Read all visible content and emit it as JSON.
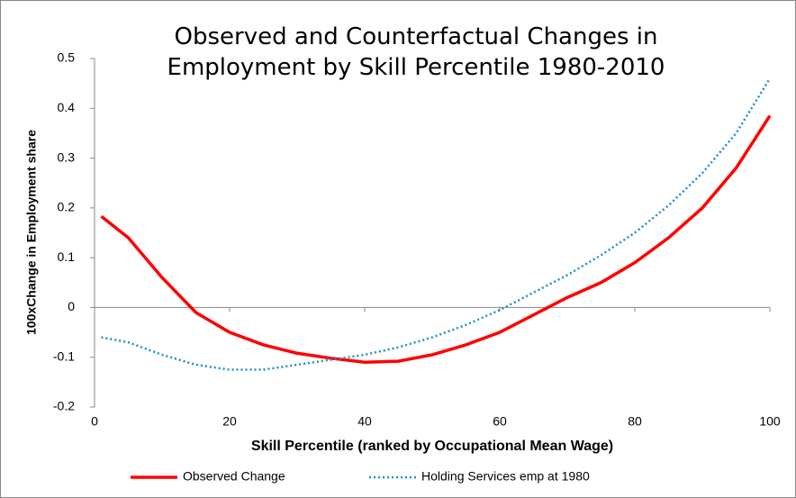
{
  "chart_data": {
    "type": "line",
    "title": "Observed and Counterfactual Changes in Employment by Skill Percentile 1980-2010",
    "x_label": "Skill Percentile (ranked by Occupational Mean Wage)",
    "y_label": "100xChange in Employment share",
    "x": [
      1,
      5,
      10,
      15,
      20,
      25,
      30,
      35,
      40,
      45,
      50,
      55,
      60,
      65,
      70,
      75,
      80,
      85,
      90,
      95,
      100
    ],
    "series": [
      {
        "name": "Observed Change",
        "color": "#ff0000",
        "dash": "solid",
        "values": [
          0.183,
          0.14,
          0.06,
          -0.01,
          -0.05,
          -0.075,
          -0.092,
          -0.102,
          -0.11,
          -0.108,
          -0.095,
          -0.075,
          -0.05,
          -0.015,
          0.02,
          0.05,
          0.09,
          0.14,
          0.2,
          0.28,
          0.385
        ]
      },
      {
        "name": "Holding Services emp at 1980",
        "color": "#1f8fc8",
        "dash": "dotted",
        "values": [
          -0.06,
          -0.07,
          -0.095,
          -0.115,
          -0.125,
          -0.125,
          -0.115,
          -0.105,
          -0.095,
          -0.08,
          -0.06,
          -0.035,
          -0.005,
          0.03,
          0.065,
          0.105,
          0.15,
          0.205,
          0.27,
          0.35,
          0.46
        ]
      }
    ],
    "xlim": [
      0,
      100
    ],
    "xticks": [
      0,
      20,
      40,
      60,
      80,
      100
    ],
    "ylim": [
      -0.2,
      0.5
    ],
    "yticks": [
      0.5,
      0.4,
      0.3,
      0.2,
      0.1,
      0,
      -0.1,
      -0.2
    ],
    "grid": false,
    "legend": "bottom"
  }
}
